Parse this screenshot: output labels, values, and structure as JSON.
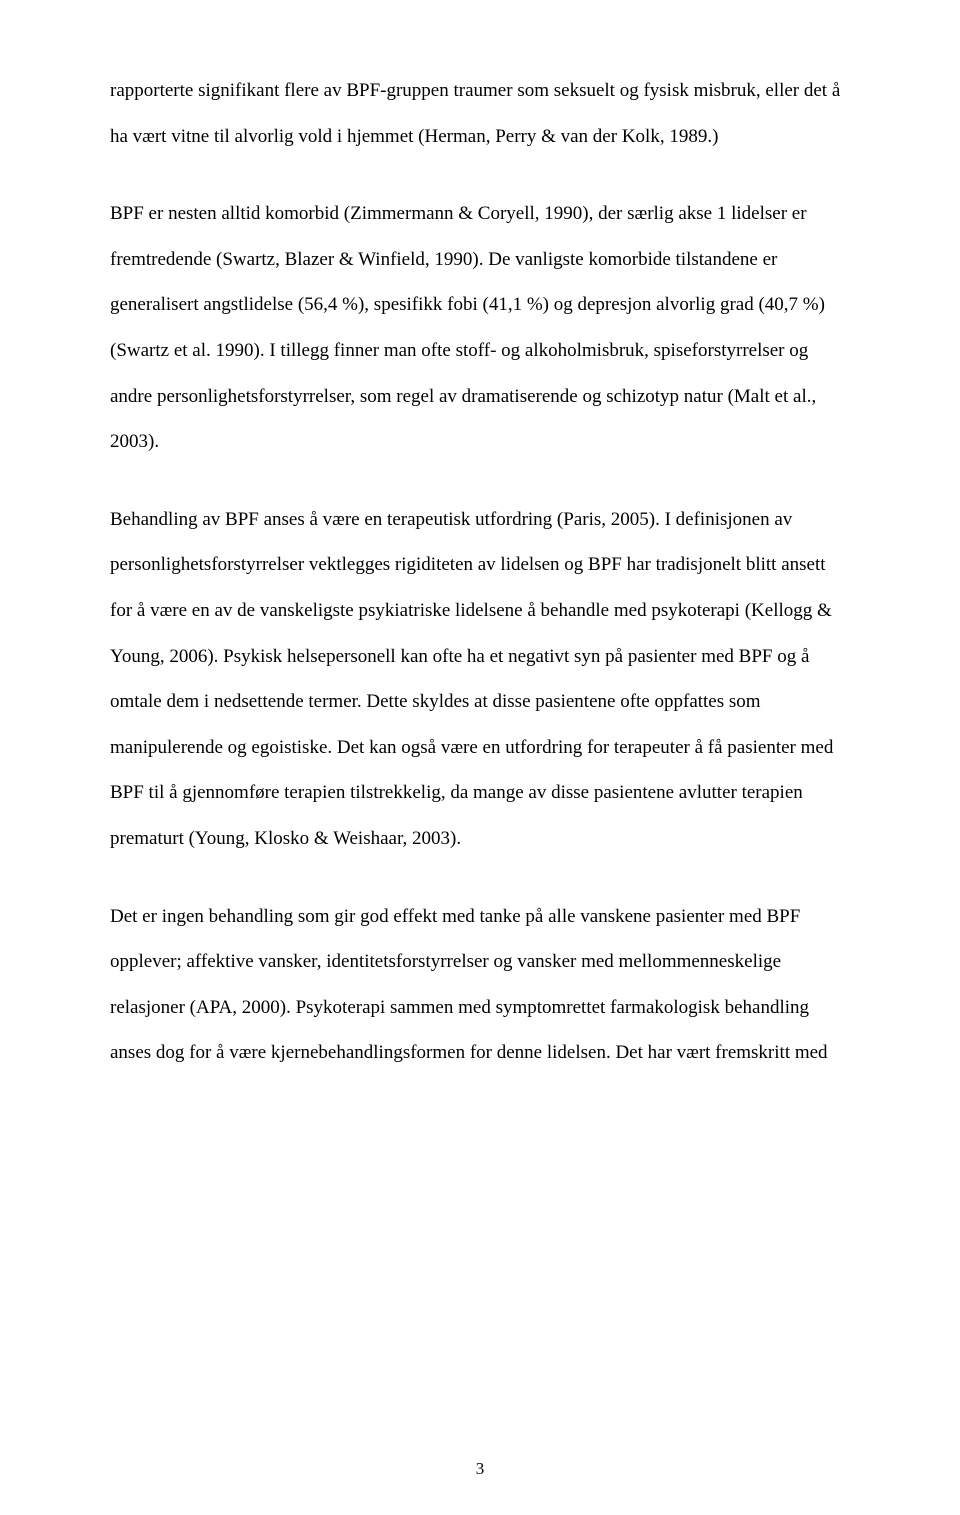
{
  "document": {
    "paragraphs": [
      "rapporterte signifikant flere av BPF-gruppen traumer som seksuelt og fysisk misbruk, eller det å ha vært vitne til alvorlig vold i hjemmet (Herman, Perry & van der Kolk, 1989.)",
      "BPF er nesten alltid komorbid (Zimmermann & Coryell, 1990), der særlig akse 1 lidelser er fremtredende (Swartz, Blazer & Winfield, 1990). De vanligste komorbide tilstandene er generalisert angstlidelse (56,4 %), spesifikk fobi (41,1 %) og depresjon alvorlig grad (40,7 %) (Swartz et al. 1990). I tillegg finner man ofte stoff- og alkoholmisbruk, spiseforstyrrelser og andre personlighetsforstyrrelser, som regel av dramatiserende og schizotyp natur (Malt et al., 2003).",
      "Behandling av BPF anses å være en terapeutisk utfordring (Paris, 2005). I definisjonen av personlighetsforstyrrelser vektlegges rigiditeten av lidelsen og BPF har tradisjonelt blitt ansett for å være en av de vanskeligste psykiatriske lidelsene å behandle med psykoterapi (Kellogg & Young, 2006). Psykisk helsepersonell kan ofte ha et negativt syn på pasienter med BPF og å omtale dem i nedsettende termer. Dette skyldes at disse pasientene ofte oppfattes som manipulerende og egoistiske. Det kan også være en utfordring for terapeuter å få pasienter med BPF til å gjennomføre terapien tilstrekkelig, da mange av disse pasientene avlutter terapien prematurt (Young, Klosko & Weishaar, 2003).",
      "Det er ingen behandling som gir god effekt med tanke på alle vanskene pasienter med BPF opplever; affektive vansker, identitetsforstyrrelser og vansker med mellommenneskelige relasjoner (APA, 2000). Psykoterapi sammen med symptomrettet farmakologisk behandling anses dog for å være kjernebehandlingsformen for denne lidelsen. Det har vært fremskritt med"
    ],
    "page_number": "3",
    "text_color": "#000000",
    "background_color": "#ffffff",
    "font_size_pt": 14,
    "line_height": 2.4
  }
}
